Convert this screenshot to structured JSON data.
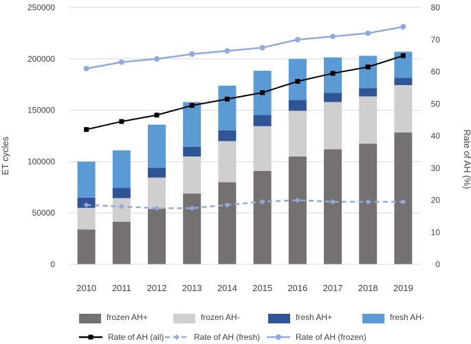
{
  "chart_data": {
    "type": "bar+line",
    "categories": [
      "2010",
      "2011",
      "2012",
      "2013",
      "2014",
      "2015",
      "2016",
      "2017",
      "2018",
      "2019"
    ],
    "left_axis": {
      "label": "ET cycles",
      "range": [
        0,
        250000
      ],
      "ticks": [
        "0",
        "50000",
        "100000",
        "150000",
        "200000",
        "250000"
      ],
      "tick_values": [
        0,
        50000,
        100000,
        150000,
        200000,
        250000
      ]
    },
    "right_axis": {
      "label": "Rate of AH (%)",
      "range": [
        0,
        80
      ],
      "ticks": [
        "0",
        "10",
        "20",
        "30",
        "40",
        "50",
        "60",
        "70",
        "80"
      ],
      "tick_values": [
        0,
        10,
        20,
        30,
        40,
        50,
        60,
        70,
        80
      ]
    },
    "bar_series": [
      {
        "name": "frozen AH+",
        "color": "#767171",
        "values": [
          34000,
          41500,
          54000,
          69000,
          80000,
          91000,
          105000,
          112000,
          117500,
          128500
        ]
      },
      {
        "name": "frozen AH-",
        "color": "#d0cece",
        "values": [
          21000,
          23000,
          30500,
          36000,
          40000,
          43500,
          44500,
          46000,
          46000,
          46000
        ]
      },
      {
        "name": "fresh AH+",
        "color": "#2f5597",
        "values": [
          10000,
          10000,
          9500,
          9500,
          10500,
          11000,
          10500,
          9000,
          8000,
          7000
        ]
      },
      {
        "name": "fresh AH-",
        "color": "#5b9bd5",
        "values": [
          35000,
          36500,
          42000,
          43500,
          43500,
          43000,
          40000,
          34500,
          31500,
          25500
        ]
      }
    ],
    "line_series": [
      {
        "name": "Rate of AH (all)",
        "axis": "right",
        "color": "#000000",
        "style": "solid",
        "marker": "square",
        "values": [
          42.0,
          44.5,
          46.5,
          49.5,
          51.5,
          53.5,
          57.0,
          59.5,
          61.5,
          65.0
        ]
      },
      {
        "name": "Rate of AH (fresh)",
        "axis": "right",
        "color": "#8faadc",
        "style": "dashed",
        "marker": "diamond",
        "values": [
          18.5,
          18.0,
          17.5,
          17.5,
          18.5,
          19.5,
          20.0,
          19.5,
          19.5,
          19.5
        ]
      },
      {
        "name": "Rate of AH (frozen)",
        "axis": "right",
        "color": "#8faadc",
        "style": "solid",
        "marker": "circle",
        "values": [
          61.0,
          63.0,
          64.0,
          65.5,
          66.5,
          67.5,
          70.0,
          71.0,
          72.0,
          74.0
        ]
      }
    ],
    "grid": "horizontal"
  }
}
